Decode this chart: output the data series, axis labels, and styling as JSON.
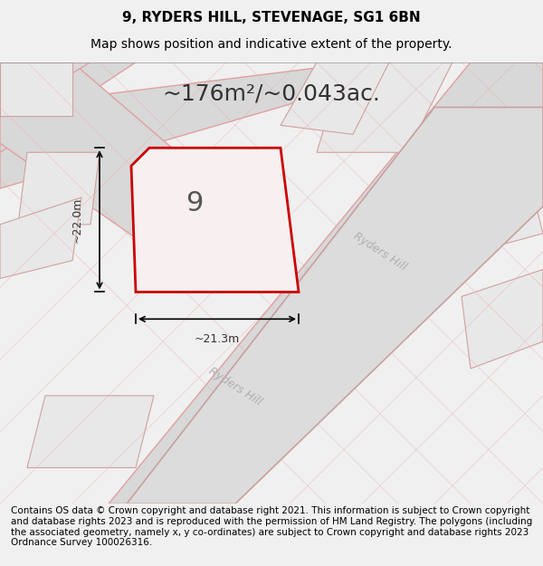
{
  "title_line1": "9, RYDERS HILL, STEVENAGE, SG1 6BN",
  "title_line2": "Map shows position and indicative extent of the property.",
  "area_text": "~176m²/~0.043ac.",
  "property_number": "9",
  "dim_vertical": "~22.0m",
  "dim_horizontal": "~21.3m",
  "footer_text": "Contains OS data © Crown copyright and database right 2021. This information is subject to Crown copyright and database rights 2023 and is reproduced with the permission of HM Land Registry. The polygons (including the associated geometry, namely x, y co-ordinates) are subject to Crown copyright and database rights 2023 Ordnance Survey 100026316.",
  "bg_color": "#f0f0f0",
  "map_bg_color": "#f5f5f5",
  "property_fill": "#f5f5f5",
  "property_edge": "#cc0000",
  "road_color": "#d4d4d4",
  "road_edge_color": "#e8b8b8",
  "street_label": "Ryders Hill",
  "title_fontsize": 11,
  "subtitle_fontsize": 10,
  "area_fontsize": 18,
  "footer_fontsize": 7.5
}
